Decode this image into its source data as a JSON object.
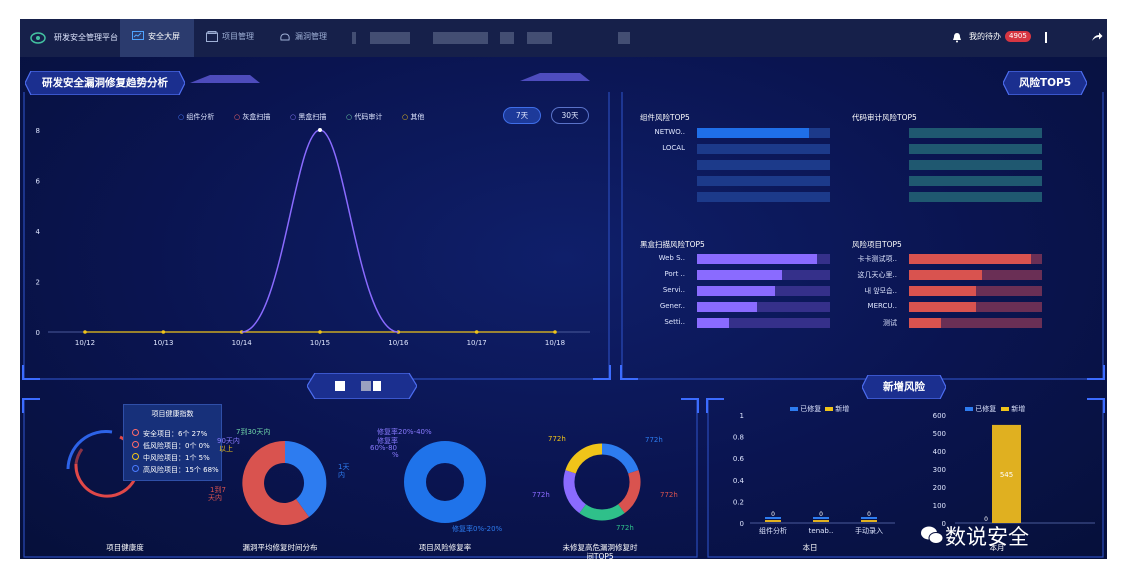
{
  "app": {
    "brand": "研发安全管理平台",
    "nav": [
      {
        "label": "安全大屏",
        "active": true
      },
      {
        "label": "项目管理",
        "active": false
      },
      {
        "label": "漏洞管理",
        "active": false
      }
    ],
    "todo_label": "我的待办",
    "todo_count": "4905"
  },
  "trend": {
    "title": "研发安全漏洞修复趋势分析",
    "legend": [
      {
        "label": "组件分析",
        "color": "#4a7bff"
      },
      {
        "label": "灰盒扫描",
        "color": "#ff6b6b"
      },
      {
        "label": "黑盒扫描",
        "color": "#8a7bff"
      },
      {
        "label": "代码审计",
        "color": "#6fd3a8"
      },
      {
        "label": "其他",
        "color": "#f0c419"
      }
    ],
    "btn_7": "7天",
    "btn_30": "30天"
  },
  "risk": {
    "title": "风险TOP5",
    "component": {
      "title": "组件风险TOP5",
      "labels": [
        "NETWO..",
        "LOCAL",
        "",
        "",
        ""
      ],
      "values": [
        0.84,
        0.0,
        0.0,
        0.0,
        0.0
      ]
    },
    "code": {
      "title": "代码审计风险TOP5",
      "labels": [
        "",
        "",
        "",
        "",
        ""
      ],
      "values": [
        0.0,
        0.0,
        0.0,
        0.0,
        0.0
      ]
    },
    "blackbox": {
      "title": "黑盒扫描风险TOP5",
      "labels": [
        "Web S..",
        "Port ..",
        "Servi..",
        "Gener..",
        "Setti.."
      ],
      "values": [
        0.9,
        0.64,
        0.59,
        0.45,
        0.24
      ]
    },
    "project": {
      "title": "风险项目TOP5",
      "labels": [
        "卡卡测试项..",
        "这几天心里..",
        "내 앞모습..",
        "MERCU..",
        "测试"
      ],
      "values": [
        0.92,
        0.55,
        0.5,
        0.5,
        0.24
      ]
    }
  },
  "health": {
    "tooltip_title": "项目健康指数",
    "tooltip_rows": [
      {
        "text": "安全项目：6个  27%",
        "color": "#ff6b6b"
      },
      {
        "text": "低风险项目：0个  0%",
        "color": "#ff6b6b"
      },
      {
        "text": "中风险项目：1个  5%",
        "color": "#f0c419"
      },
      {
        "text": "高风险项目：15个  68%",
        "color": "#4a7bff"
      }
    ],
    "caption": "项目健康度"
  },
  "fixtime": {
    "labels": [
      "7到30天内",
      "90天内",
      "以上",
      "1到7",
      "天内",
      "1天",
      "内"
    ],
    "caption": "漏洞平均修复时间分布"
  },
  "fixrate": {
    "labels": [
      "修复率20%-40%",
      "修复率",
      "60%-80",
      "%",
      "修复率0%-20%"
    ],
    "caption": "项目风险修复率"
  },
  "unfixed": {
    "labels": [
      "772h",
      "772h",
      "772h",
      "772h",
      "772h"
    ],
    "caption": "未修复高危漏洞修复时",
    "caption2": "间TOP5"
  },
  "newrisk": {
    "title": "新增风险",
    "legend_fixed": "已修复",
    "legend_new": "新增",
    "today_caption": "本日",
    "month_caption": "本月",
    "today_categories": [
      "组件分析",
      "tenab..",
      "手动录入"
    ],
    "today_values": [
      0,
      0,
      0
    ],
    "month_value": "545",
    "month_zero": "0"
  },
  "watermark": "数说安全",
  "chart_data": [
    {
      "type": "line",
      "title": "研发安全漏洞修复趋势分析",
      "x": [
        "10/12",
        "10/13",
        "10/14",
        "10/15",
        "10/16",
        "10/17",
        "10/18"
      ],
      "series": [
        {
          "name": "黑盒扫描",
          "values": [
            0,
            0,
            0,
            8,
            0,
            0,
            0
          ]
        },
        {
          "name": "其他",
          "values": [
            0,
            0,
            0,
            0,
            0,
            0,
            0
          ]
        }
      ],
      "yticks": [
        0,
        2,
        4,
        6,
        8
      ],
      "ylim": [
        0,
        8
      ]
    },
    {
      "type": "bar",
      "title": "本月",
      "categories": [
        ""
      ],
      "series": [
        {
          "name": "新增",
          "values": [
            545
          ]
        },
        {
          "name": "已修复",
          "values": [
            0
          ]
        }
      ],
      "yticks": [
        0,
        100,
        200,
        300,
        400,
        500,
        600
      ],
      "ylim": [
        0,
        600
      ]
    },
    {
      "type": "bar",
      "title": "本日",
      "categories": [
        "组件分析",
        "tenab..",
        "手动录入"
      ],
      "series": [
        {
          "name": "已修复",
          "values": [
            0,
            0,
            0
          ]
        },
        {
          "name": "新增",
          "values": [
            0,
            0,
            0
          ]
        }
      ],
      "yticks": [
        0,
        0.2,
        0.4,
        0.6,
        0.8,
        1
      ],
      "ylim": [
        0,
        1
      ]
    }
  ]
}
